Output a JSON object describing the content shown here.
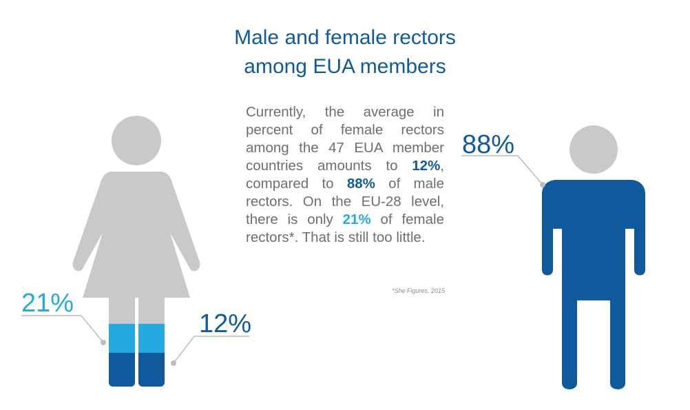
{
  "title_lines": [
    "Male and female rectors",
    "among EUA members"
  ],
  "paragraph": {
    "p1": "Currently, the average in percent of female rectors among the 47 EUA member countries amounts to ",
    "v12": "12%",
    "p2": ", compared to ",
    "v88": "88%",
    "p3": " of male rectors. On the EU-28 level, there is only ",
    "v21": "21%",
    "p4": " of female rectors*.  That is still too little."
  },
  "footnote": "*She Figures, 2015",
  "callouts": {
    "male": "88%",
    "eu28_female": "21%",
    "eua_female": "12%"
  },
  "chart_data": {
    "type": "pictogram",
    "title": "Male and female rectors among EUA members",
    "categories": [
      "Female rectors (EUA)",
      "Male rectors (EUA)",
      "Female rectors (EU-28)"
    ],
    "values": [
      12,
      88,
      21
    ],
    "unit": "%",
    "colors": {
      "male": "#0f5a9c",
      "female_eua": "#0f5a9c",
      "female_eu28": "#26a9e0",
      "neutral": "#c8c9ca",
      "leader": "#bcbcbc",
      "title": "#0f5a9c",
      "text": "#6d6e71"
    }
  }
}
